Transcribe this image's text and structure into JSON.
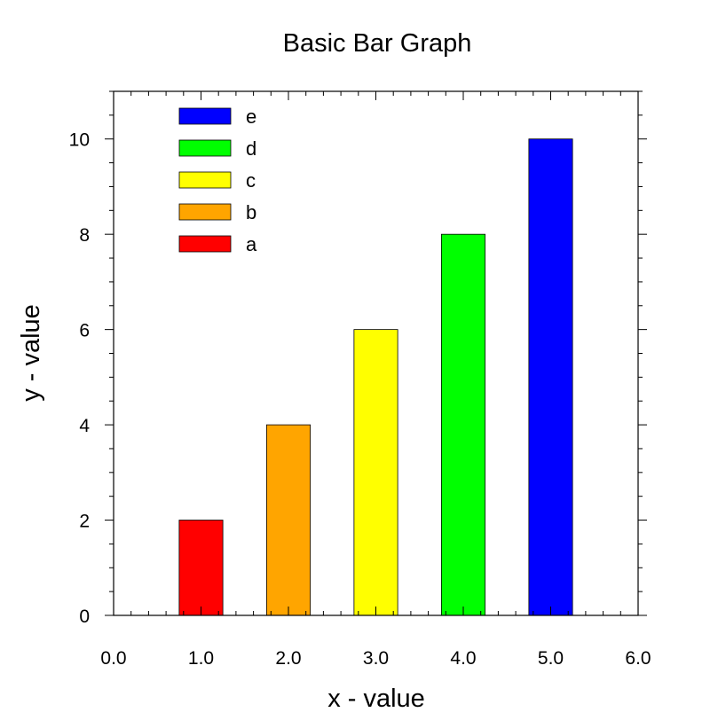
{
  "chart_data": {
    "type": "bar",
    "title": "Basic Bar Graph",
    "xlabel": "x - value",
    "ylabel": "y - value",
    "xlim": [
      0,
      6
    ],
    "ylim": [
      0,
      11
    ],
    "x_ticks": [
      "0.0",
      "1.0",
      "2.0",
      "3.0",
      "4.0",
      "5.0",
      "6.0"
    ],
    "y_ticks": [
      "0",
      "2",
      "4",
      "6",
      "8",
      "10"
    ],
    "bars": [
      {
        "label": "a",
        "x": 1.0,
        "value": 2,
        "color": "#ff0000"
      },
      {
        "label": "b",
        "x": 2.0,
        "value": 4,
        "color": "#ffa500"
      },
      {
        "label": "c",
        "x": 3.0,
        "value": 6,
        "color": "#ffff00"
      },
      {
        "label": "d",
        "x": 4.0,
        "value": 8,
        "color": "#00ff00"
      },
      {
        "label": "e",
        "x": 5.0,
        "value": 10,
        "color": "#0000ff"
      }
    ],
    "legend": {
      "placement": "top-left",
      "order": [
        "e",
        "d",
        "c",
        "b",
        "a"
      ]
    },
    "grid": false
  }
}
